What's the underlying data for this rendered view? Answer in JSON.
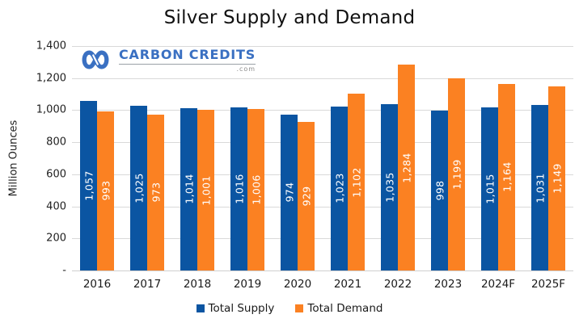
{
  "title": "Silver Supply and Demand",
  "logo": {
    "text": "CARBON CREDITS",
    "suffix": ".com",
    "icon_color": "#3a70c2"
  },
  "chart_data": {
    "type": "bar",
    "title": "Silver Supply and Demand",
    "categories": [
      "2016",
      "2017",
      "2018",
      "2019",
      "2020",
      "2021",
      "2022",
      "2023",
      "2024F",
      "2025F"
    ],
    "series": [
      {
        "name": "Total Supply",
        "color": "#0b55a2",
        "values": [
          1057,
          1025,
          1014,
          1016,
          974,
          1023,
          1035,
          998,
          1015,
          1031
        ]
      },
      {
        "name": "Total Demand",
        "color": "#fb8122",
        "values": [
          993,
          973,
          1001,
          1006,
          929,
          1102,
          1284,
          1199,
          1164,
          1149
        ]
      }
    ],
    "xlabel": "",
    "ylabel": "Million Ounces",
    "ylim": [
      0,
      1400
    ],
    "ytick_labels": [
      "1,400",
      "1,200",
      "1,000",
      "800",
      "600",
      "400",
      "200",
      "-"
    ],
    "grid": "horizontal",
    "gridline_color": "#d9d9d9",
    "legend_position": "bottom",
    "bar_value_labels": "inside, rotated 90°, white"
  }
}
